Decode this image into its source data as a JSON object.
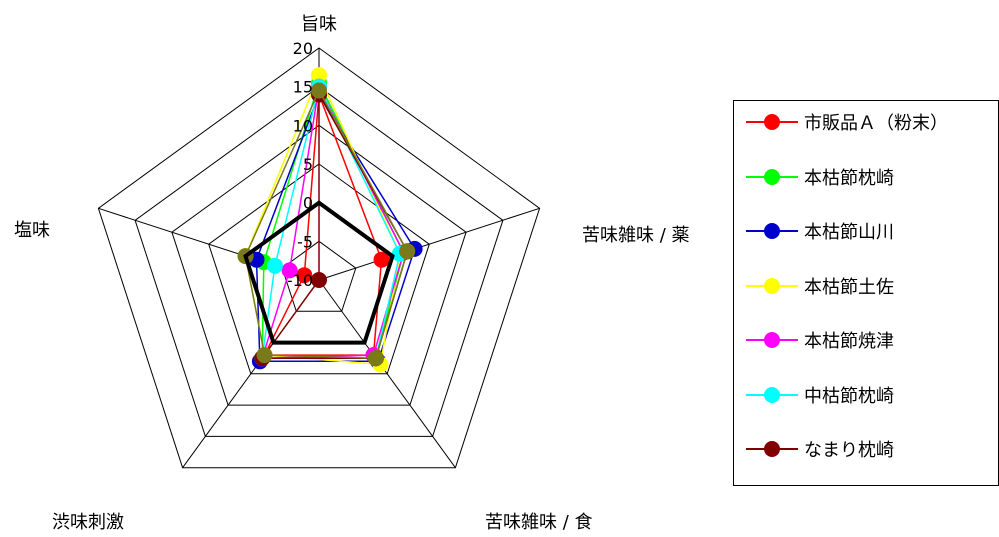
{
  "chart_data": {
    "type": "radar",
    "axes": [
      "旨味",
      "苦味雑味 / 薬",
      "苦味雑味 / 食",
      "渋味刺激",
      "塩味"
    ],
    "rlim": [
      -10,
      20
    ],
    "ticks": [
      "20",
      "15",
      "10",
      "5",
      "0",
      "-5",
      "-10"
    ],
    "series": [
      {
        "name": "市販品Ａ（粉末）",
        "color": "#ff0000",
        "values": [
          14.0,
          -1.5,
          2.0,
          2.0,
          -8.0
        ]
      },
      {
        "name": "本枯節枕崎",
        "color": "#00ff00",
        "values": [
          15.5,
          1.5,
          2.5,
          2.5,
          -2.5
        ]
      },
      {
        "name": "本枯節山川",
        "color": "#0000cc",
        "values": [
          14.0,
          3.0,
          3.0,
          3.0,
          -1.5
        ]
      },
      {
        "name": "本枯節土佐",
        "color": "#ffff00",
        "values": [
          16.5,
          1.0,
          3.5,
          2.0,
          0.0
        ]
      },
      {
        "name": "本枯節焼津",
        "color": "#ff00ff",
        "values": [
          15.0,
          1.5,
          2.0,
          2.5,
          -6.0
        ]
      },
      {
        "name": "中枯節枕崎",
        "color": "#00ffff",
        "values": [
          15.0,
          1.0,
          2.5,
          2.5,
          -4.0
        ]
      },
      {
        "name": "なまり枕崎",
        "color": "#800000",
        "values": [
          14.0,
          2.0,
          2.5,
          2.5,
          -10.0
        ]
      },
      {
        "name": "",
        "color": "#7a7a1a",
        "values": [
          14.5,
          2.0,
          2.5,
          2.0,
          0.0
        ]
      },
      {
        "name": "",
        "color": "#000000",
        "values": [
          0.0,
          0.0,
          0.0,
          0.0,
          0.0
        ]
      }
    ]
  }
}
